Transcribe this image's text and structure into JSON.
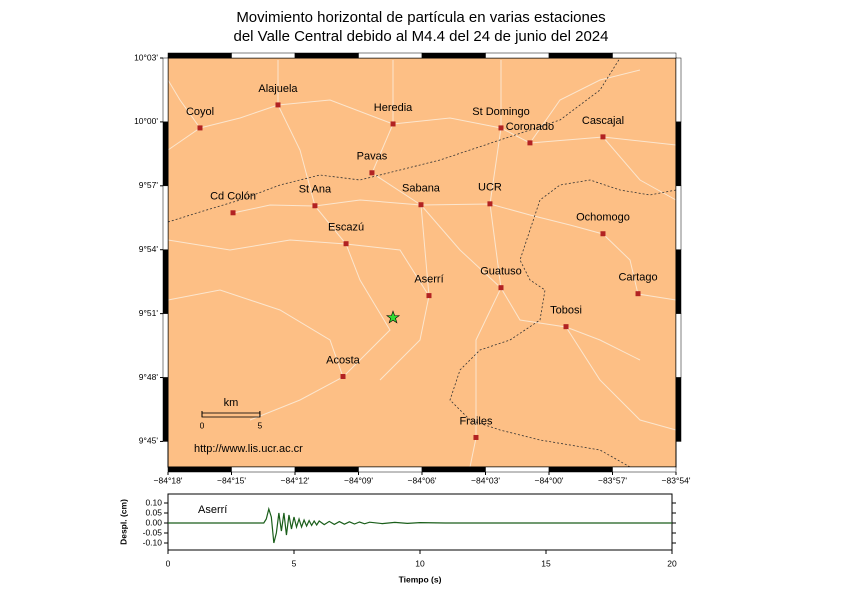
{
  "title": [
    "Movimiento horizontal de partícula en varias estaciones",
    "del Valle Central debido al M4.4 del 24 de junio del 2024"
  ],
  "map": {
    "xlim": [
      -84.3,
      -83.9
    ],
    "ylim": [
      9.73,
      10.05
    ],
    "xticks": [
      {
        "value": -84.3,
        "label": "−84°18'"
      },
      {
        "value": -84.25,
        "label": "−84°15'"
      },
      {
        "value": -84.2,
        "label": "−84°12'"
      },
      {
        "value": -84.15,
        "label": "−84°09'"
      },
      {
        "value": -84.1,
        "label": "−84°06'"
      },
      {
        "value": -84.05,
        "label": "−84°03'"
      },
      {
        "value": -84.0,
        "label": "−84°00'"
      },
      {
        "value": -83.95,
        "label": "−83°57'"
      },
      {
        "value": -83.9,
        "label": "−83°54'"
      }
    ],
    "yticks": [
      {
        "value": 10.05,
        "label": "10°03'"
      },
      {
        "value": 10.0,
        "label": "10°00'"
      },
      {
        "value": 9.95,
        "label": "9°57'"
      },
      {
        "value": 9.9,
        "label": "9°54'"
      },
      {
        "value": 9.85,
        "label": "9°51'"
      },
      {
        "value": 9.8,
        "label": "9°48'"
      },
      {
        "value": 9.75,
        "label": "9°45'"
      }
    ],
    "stations": [
      {
        "name": "Coyol",
        "lon": -84.2748,
        "lat": 9.9953
      },
      {
        "name": "Alajuela",
        "lon": -84.2134,
        "lat": 10.0133
      },
      {
        "name": "Heredia",
        "lon": -84.1228,
        "lat": 9.9984
      },
      {
        "name": "St Domingo",
        "lon": -84.0378,
        "lat": 9.9953
      },
      {
        "name": "Coronado",
        "lon": -84.015,
        "lat": 9.9836
      },
      {
        "name": "Cascajal",
        "lon": -83.9575,
        "lat": 9.9883
      },
      {
        "name": "Pavas",
        "lon": -84.1394,
        "lat": 9.9602
      },
      {
        "name": "Sabana",
        "lon": -84.1008,
        "lat": 9.9352
      },
      {
        "name": "UCR",
        "lon": -84.0465,
        "lat": 9.9359
      },
      {
        "name": "St Ana",
        "lon": -84.1843,
        "lat": 9.9344
      },
      {
        "name": "Cd Colón",
        "lon": -84.2488,
        "lat": 9.9289
      },
      {
        "name": "Escazú",
        "lon": -84.1598,
        "lat": 9.9047
      },
      {
        "name": "Ochomogo",
        "lon": -83.9575,
        "lat": 9.9125
      },
      {
        "name": "Aserrí",
        "lon": -84.0945,
        "lat": 9.8641
      },
      {
        "name": "Guatuso",
        "lon": -84.0378,
        "lat": 9.8703
      },
      {
        "name": "Cartago",
        "lon": -83.9299,
        "lat": 9.8656
      },
      {
        "name": "Tobosi",
        "lon": -83.9866,
        "lat": 9.8398
      },
      {
        "name": "Acosta",
        "lon": -84.1622,
        "lat": 9.8008
      },
      {
        "name": "Frailes",
        "lon": -84.0575,
        "lat": 9.7531
      }
    ],
    "station_color": "#b22222",
    "epicenter": {
      "lon": -84.1228,
      "lat": 9.8469,
      "color": "#33dd33"
    },
    "scale": {
      "label": "km",
      "ticks": [
        0,
        5
      ]
    }
  },
  "url": "http://www.lis.ucr.ac.cr",
  "seismogram": {
    "type": "line",
    "station": "Aserrí",
    "xlabel": "Tiempo (s)",
    "ylabel": "Despl. (cm)",
    "color": "#1a5e1a",
    "xlim": [
      0,
      20
    ],
    "ylim": [
      -0.135,
      0.145
    ],
    "xticks": [
      0,
      5,
      10,
      15,
      20
    ],
    "yticks": [
      {
        "value": 0.1,
        "label": "0.10"
      },
      {
        "value": 0.05,
        "label": "0.05"
      },
      {
        "value": 0,
        "label": "0.00"
      },
      {
        "value": -0.05,
        "label": "-0.05"
      },
      {
        "value": -0.1,
        "label": "-0.10"
      }
    ],
    "x": [
      0,
      3.5,
      3.8,
      3.9,
      4.0,
      4.1,
      4.2,
      4.3,
      4.4,
      4.5,
      4.6,
      4.7,
      4.8,
      4.9,
      5.0,
      5.1,
      5.2,
      5.3,
      5.4,
      5.5,
      5.6,
      5.7,
      5.8,
      5.9,
      6.0,
      6.2,
      6.4,
      6.6,
      6.8,
      7.0,
      7.2,
      7.4,
      7.6,
      7.8,
      8.0,
      8.5,
      9.0,
      9.5,
      10,
      11,
      20
    ],
    "values": [
      0,
      0,
      0,
      0.02,
      0.07,
      0.03,
      -0.1,
      -0.05,
      0.05,
      -0.04,
      0.05,
      -0.06,
      0.04,
      -0.03,
      0.03,
      -0.02,
      0.02,
      -0.02,
      0.015,
      -0.015,
      0.012,
      -0.012,
      0.01,
      -0.01,
      0.01,
      -0.008,
      0.008,
      -0.007,
      0.007,
      -0.006,
      0.006,
      -0.005,
      0.005,
      -0.004,
      0.004,
      -0.003,
      0.003,
      -0.002,
      0.002,
      0,
      0
    ]
  }
}
